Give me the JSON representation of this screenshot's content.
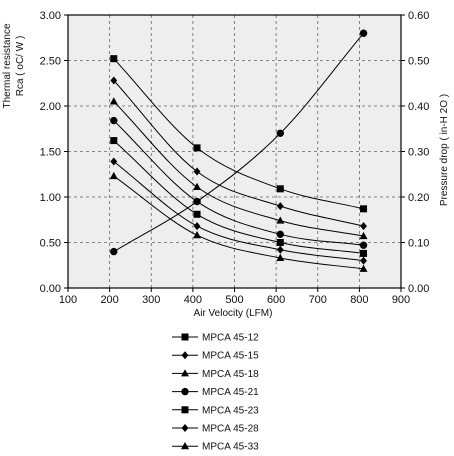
{
  "chart_data": {
    "type": "line",
    "xlabel": "Air Velocity (LFM)",
    "ylabel_lines": [
      "Thermal resistance",
      "Rca ( oC/ W )"
    ],
    "y2label": "Pressure drop  ( in-H 2O )",
    "x_ticks": [
      "100",
      "200",
      "300",
      "400",
      "500",
      "600",
      "700",
      "800",
      "900"
    ],
    "y_ticks": [
      "0.00",
      "0.50",
      "1.00",
      "1.50",
      "2.00",
      "2.50",
      "3.00"
    ],
    "y2_ticks": [
      "0.00",
      "0.10",
      "0.20",
      "0.30",
      "0.40",
      "0.50",
      "0.60"
    ],
    "xlim": [
      100,
      900
    ],
    "ylim": [
      0,
      3.0
    ],
    "y2lim": [
      0,
      0.6
    ],
    "grid": true,
    "plot_background": "#eeeeee",
    "line_color": "#000000",
    "legend_position": "below",
    "x": [
      210,
      410,
      610,
      810
    ],
    "series": [
      {
        "name": "MPCA 45-12",
        "marker": "square",
        "values": [
          2.52,
          1.54,
          1.09,
          0.87
        ]
      },
      {
        "name": "MPCA 45-15",
        "marker": "diamond",
        "values": [
          2.28,
          1.28,
          0.9,
          0.68
        ]
      },
      {
        "name": "MPCA 45-18",
        "marker": "triangle",
        "values": [
          2.05,
          1.11,
          0.74,
          0.57
        ]
      },
      {
        "name": "MPCA 45-21",
        "marker": "circle",
        "values": [
          1.84,
          0.95,
          0.59,
          0.47
        ]
      },
      {
        "name": "MPCA 45-23",
        "marker": "square",
        "values": [
          1.62,
          0.81,
          0.5,
          0.38
        ]
      },
      {
        "name": "MPCA 45-28",
        "marker": "diamond",
        "values": [
          1.39,
          0.68,
          0.42,
          0.3
        ]
      },
      {
        "name": "MPCA 45-33",
        "marker": "triangle",
        "values": [
          1.23,
          0.58,
          0.33,
          0.21
        ]
      }
    ],
    "pressure_drop": {
      "marker": "circle",
      "axis": "right",
      "values": [
        0.08,
        0.19,
        0.34,
        0.56
      ]
    }
  }
}
